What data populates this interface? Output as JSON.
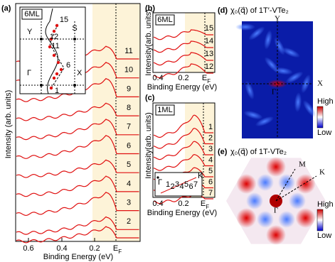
{
  "panel_a": {
    "label": "(a)",
    "y_axis_label": "Intensity (arb. units)",
    "x_axis_label": "Binding Energy (eV)",
    "x_tick_labels": [
      "0.6",
      "0.4",
      "0.2"
    ],
    "ef": [
      "E",
      "F"
    ],
    "curve_labels": [
      "11",
      "10",
      "9",
      "8",
      "7",
      "6",
      "5",
      "4",
      "3",
      "2"
    ],
    "inset": {
      "tag": "6ML",
      "points": [
        "Y",
        "S",
        "Γ",
        "X"
      ],
      "path_labels": [
        "15",
        "12",
        "11",
        "6",
        "1"
      ]
    }
  },
  "panel_b": {
    "label": "(b)",
    "tag": "6ML",
    "y_axis_label": "Intensity(arb. units)",
    "x_axis_label": "Binding Energy (eV)",
    "x_tick_labels": [
      "0.4",
      "0.2"
    ],
    "ef": [
      "E",
      "F"
    ],
    "curve_labels": [
      "15",
      "14",
      "13",
      "12"
    ]
  },
  "panel_c": {
    "label": "(c)",
    "tag": "1ML",
    "y_axis_label": "Intensity(arb. units)",
    "x_axis_label": "Binding Energy (eV)",
    "x_tick_labels": [
      "0.4",
      "0.2"
    ],
    "ef": [
      "E",
      "F"
    ],
    "curve_labels": [
      "1",
      "2",
      "3",
      "4",
      "5",
      "6",
      "7"
    ],
    "inset": {
      "points": [
        "Γ",
        "K"
      ],
      "cut_labels": [
        "1",
        "2",
        "3",
        "4",
        "5",
        "6",
        "7"
      ]
    }
  },
  "panel_d": {
    "label": "(d)",
    "title": "χ₀(q⃗) of 1T′-VTe₂",
    "points": [
      "Y",
      "X",
      "Γ"
    ],
    "colorbar": [
      "High",
      "Low"
    ]
  },
  "panel_e": {
    "label": "(e)",
    "title": "χ₀(q⃗) of 1T-VTe₂",
    "points": [
      "M",
      "K",
      "Γ"
    ],
    "colorbar": [
      "High",
      "Low"
    ]
  }
}
